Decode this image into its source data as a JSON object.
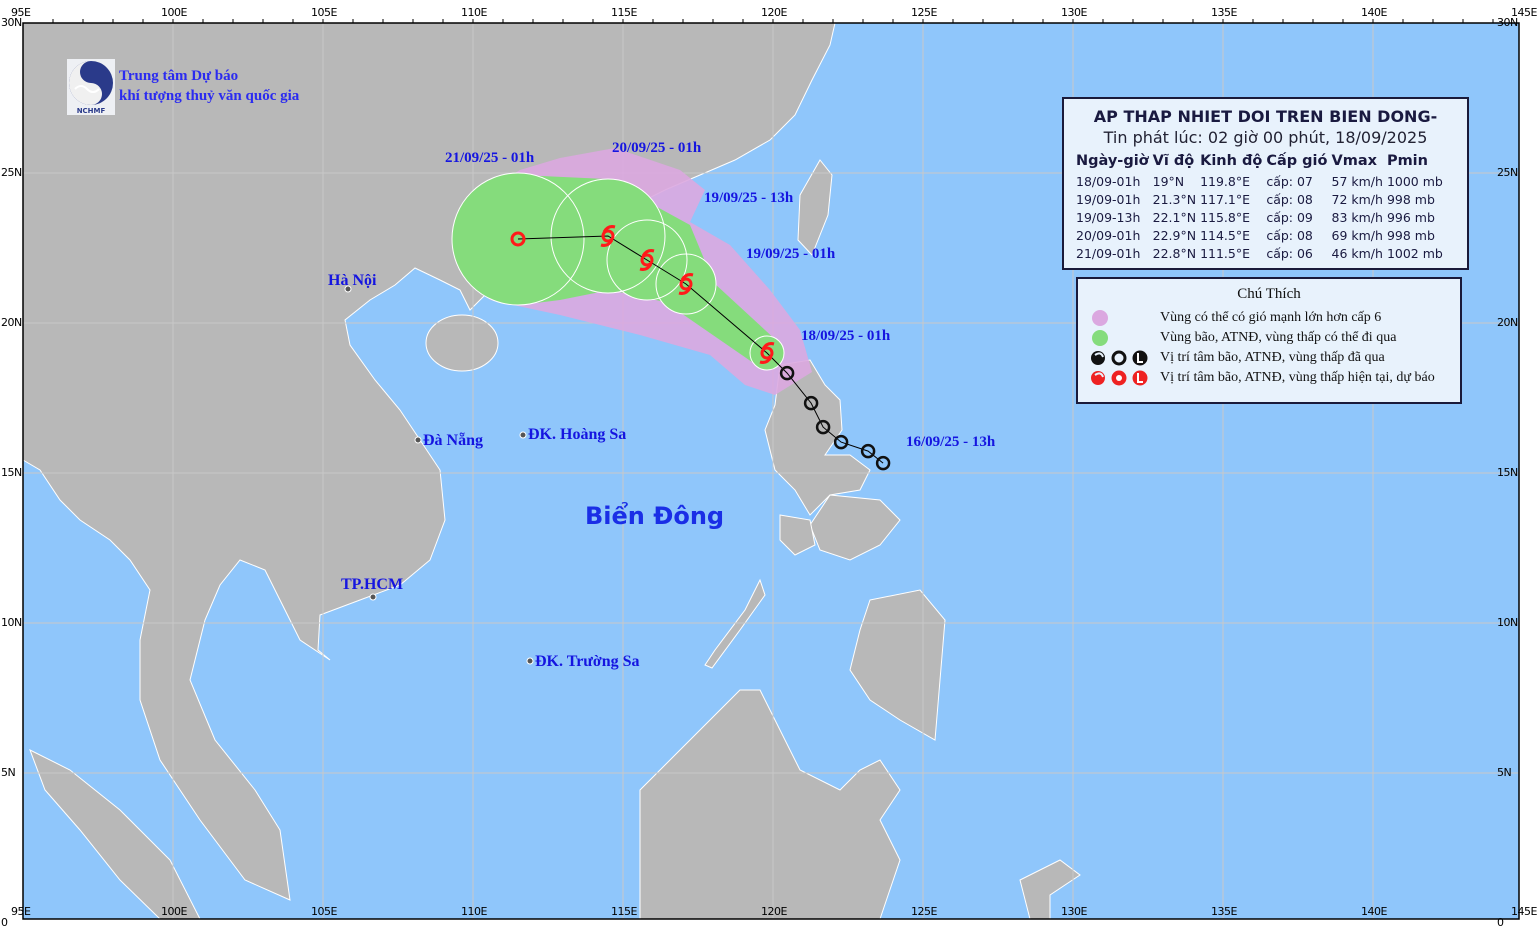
{
  "map": {
    "sea_color": "#8fc6fb",
    "land_color": "#b8b8b8",
    "wind_zone_color": "#dba8e0",
    "storm_zone_color": "#85dc7c",
    "current_forecast_color": "#ff1a1a",
    "past_color": "#111111",
    "lon_labels": [
      "95E",
      "100E",
      "105E",
      "110E",
      "115E",
      "120E",
      "125E",
      "130E",
      "135E",
      "140E",
      "145E"
    ],
    "lat_labels": [
      "30N",
      "25N",
      "20N",
      "15N",
      "10N",
      "5N",
      "0"
    ],
    "sea_name": "Biển Đông"
  },
  "logo": {
    "org_line1": "Trung tâm Dự báo",
    "org_line2": "khí tượng thuỷ văn quốc gia",
    "logo_text": "NCHMF"
  },
  "bulletin": {
    "title": "AP THAP NHIET DOI TREN BIEN DONG-",
    "issued": "Tin phát lúc: 02 giờ 00 phút, 18/09/2025",
    "headers": [
      "Ngày-giờ",
      "Vĩ độ",
      "Kinh độ",
      "Cấp gió",
      "Vmax",
      "Pmin"
    ],
    "rows": [
      [
        "18/09-01h",
        "19°N",
        "119.8°E",
        "cấp: 07",
        "57 km/h",
        "1000 mb"
      ],
      [
        "19/09-01h",
        "21.3°N",
        "117.1°E",
        "cấp: 08",
        "72 km/h",
        "998 mb"
      ],
      [
        "19/09-13h",
        "22.1°N",
        "115.8°E",
        "cấp: 09",
        "83 km/h",
        "996 mb"
      ],
      [
        "20/09-01h",
        "22.9°N",
        "114.5°E",
        "cấp: 08",
        "69 km/h",
        "998 mb"
      ],
      [
        "21/09-01h",
        "22.8°N",
        "111.5°E",
        "cấp: 06",
        "46 km/h",
        "1002 mb"
      ]
    ]
  },
  "legend": {
    "title": "Chú Thích",
    "items": [
      "Vùng có thể có gió mạnh lớn hơn cấp 6",
      "Vùng bão, ATNĐ, vùng thấp có thể đi qua",
      "Vị trí tâm bão, ATNĐ, vùng thấp đã qua",
      "Vị trí tâm bão, ATNĐ, vùng thấp hiện tại, dự báo"
    ]
  },
  "track": {
    "past": [
      {
        "lat": 15.33,
        "lon": 123.67
      },
      {
        "lat": 15.73,
        "lon": 123.17
      },
      {
        "lat": 16.03,
        "lon": 122.27
      },
      {
        "lat": 16.53,
        "lon": 121.67
      },
      {
        "lat": 17.33,
        "lon": 121.27
      },
      {
        "lat": 18.33,
        "lon": 120.47
      }
    ],
    "forecast": [
      {
        "lat": 19.0,
        "lon": 119.8,
        "symbol": "storm"
      },
      {
        "lat": 21.3,
        "lon": 117.1,
        "symbol": "storm"
      },
      {
        "lat": 22.1,
        "lon": 115.8,
        "symbol": "storm"
      },
      {
        "lat": 22.9,
        "lon": 114.5,
        "symbol": "storm"
      },
      {
        "lat": 22.8,
        "lon": 111.5,
        "symbol": "low"
      }
    ],
    "time_labels": [
      "16/09/25 - 13h",
      "18/09/25 - 01h",
      "19/09/25 - 01h",
      "19/09/25 - 13h",
      "20/09/25 - 01h",
      "21/09/25 - 01h"
    ]
  },
  "places": [
    "Hà Nội",
    "Đà Nẵng",
    "ĐK. Hoàng Sa",
    "TP.HCM",
    "ĐK. Trường Sa"
  ]
}
